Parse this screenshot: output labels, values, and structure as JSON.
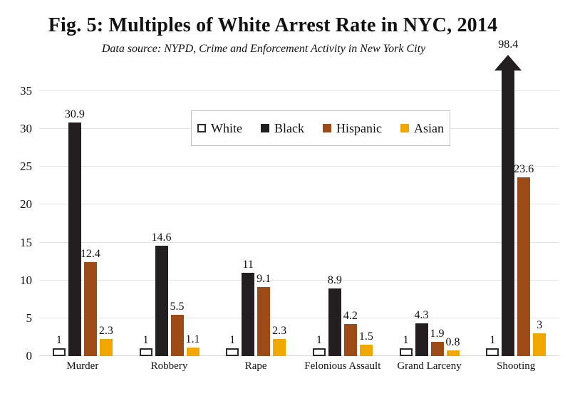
{
  "figure": {
    "title": "Fig. 5: Multiples of White Arrest Rate in NYC, 2014",
    "subtitle": "Data source: NYPD, Crime and Enforcement Activity in New York City"
  },
  "theme": {
    "grid_color": "#e4e4e4",
    "zero_line_color": "#d8d8d8",
    "text_color": "#111111",
    "legend_border_color": "#c2c2c2",
    "background": "#ffffff"
  },
  "chart_data": {
    "type": "bar",
    "title": "Fig. 5: Multiples of White Arrest Rate in NYC, 2014",
    "subtitle": "Data source: NYPD, Crime and Enforcement Activity in New York City",
    "categories": [
      "Murder",
      "Robbery",
      "Rape",
      "Felonious Assault",
      "Grand Larceny",
      "Shooting"
    ],
    "series": [
      {
        "name": "White",
        "color": "#ffffff",
        "border_color": "#2b2b2b",
        "values": [
          1,
          1,
          1,
          1,
          1,
          1
        ]
      },
      {
        "name": "Black",
        "color": "#231f20",
        "values": [
          30.9,
          14.6,
          11,
          8.9,
          4.3,
          98.4
        ]
      },
      {
        "name": "Hispanic",
        "color": "#9c4a16",
        "values": [
          12.4,
          5.5,
          9.1,
          4.2,
          1.9,
          23.6
        ]
      },
      {
        "name": "Asian",
        "color": "#f0a800",
        "values": [
          2.3,
          1.1,
          2.3,
          1.5,
          0.8,
          3
        ]
      }
    ],
    "ylim": [
      0,
      35
    ],
    "yticks": [
      0,
      5,
      10,
      15,
      20,
      25,
      30,
      35
    ],
    "grid": true,
    "value_labels_shown": true,
    "legend_position": "inside-top-center",
    "legend_entries": [
      "White",
      "Black",
      "Hispanic",
      "Asian"
    ],
    "off_scale_marker": {
      "series": "Black",
      "category": "Shooting",
      "value": 98.4,
      "note": "drawn as upward arrow exceeding the y-axis maximum"
    }
  }
}
